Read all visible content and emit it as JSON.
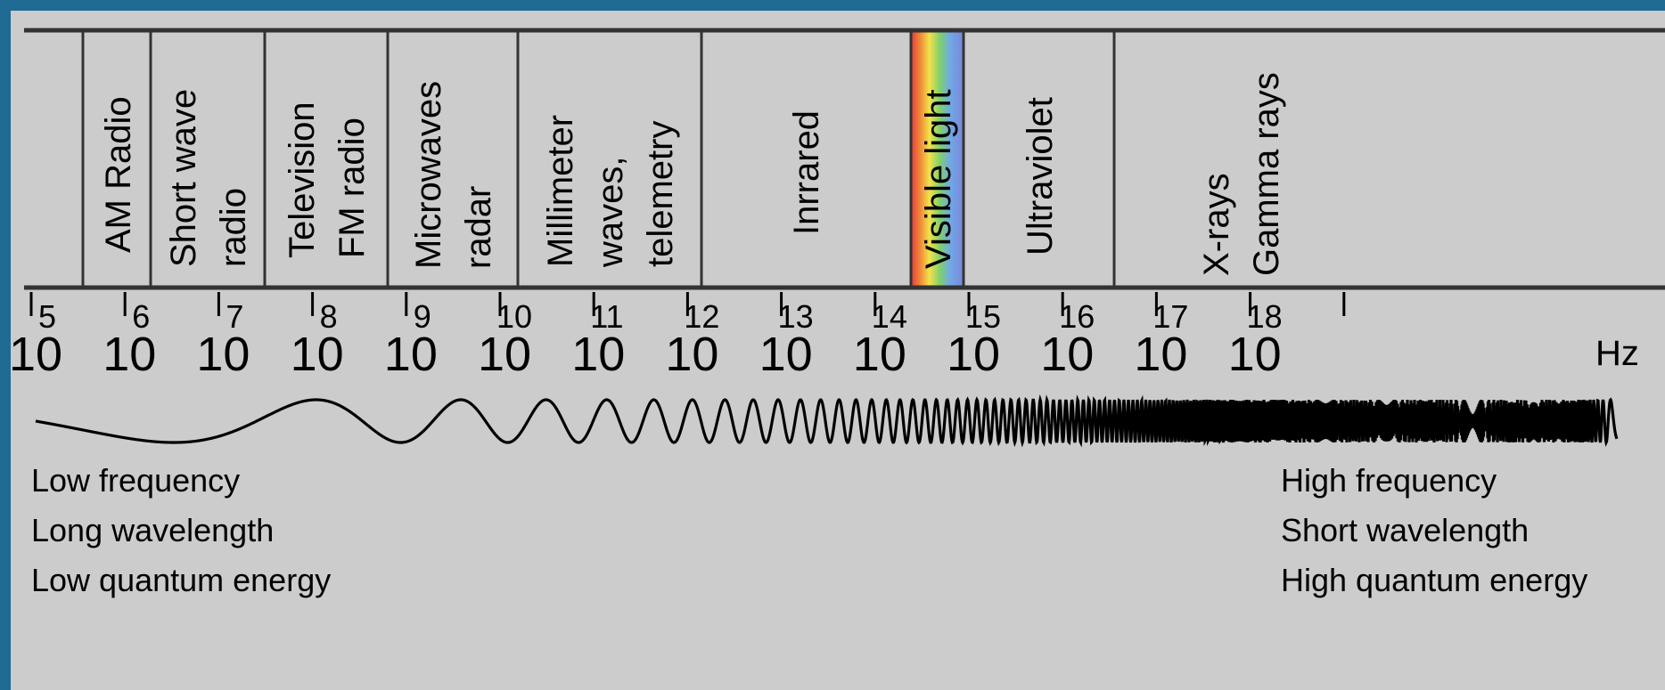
{
  "bands": [
    {
      "name": "am-radio",
      "lines": [
        "AM Radio"
      ]
    },
    {
      "name": "short-wave-radio",
      "lines": [
        "Short wave",
        "radio"
      ]
    },
    {
      "name": "television-fm-radio",
      "lines": [
        "Television",
        "FM radio"
      ]
    },
    {
      "name": "microwaves-radar",
      "lines": [
        "Microwaves",
        "radar"
      ]
    },
    {
      "name": "millimeter-waves-telemetry",
      "lines": [
        "Millimeter",
        "waves,",
        "telemetry"
      ]
    },
    {
      "name": "infrared",
      "lines": [
        "Inrrared"
      ]
    },
    {
      "name": "visible-light",
      "lines": [
        "Visible light"
      ]
    },
    {
      "name": "ultraviolet",
      "lines": [
        "Ultraviolet"
      ]
    },
    {
      "name": "x-rays-gamma-rays",
      "lines": [
        "X-rays",
        "Gamma rays"
      ]
    }
  ],
  "ticks": [
    {
      "base": "10",
      "exp": "5"
    },
    {
      "base": "10",
      "exp": "6"
    },
    {
      "base": "10",
      "exp": "7"
    },
    {
      "base": "10",
      "exp": "8"
    },
    {
      "base": "10",
      "exp": "9"
    },
    {
      "base": "10",
      "exp": "10"
    },
    {
      "base": "10",
      "exp": "11"
    },
    {
      "base": "10",
      "exp": "12"
    },
    {
      "base": "10",
      "exp": "13"
    },
    {
      "base": "10",
      "exp": "14"
    },
    {
      "base": "10",
      "exp": "15"
    },
    {
      "base": "10",
      "exp": "16"
    },
    {
      "base": "10",
      "exp": "17"
    },
    {
      "base": "10",
      "exp": "18"
    }
  ],
  "unit": "Hz",
  "left_notes": [
    "Low frequency",
    "Long wavelength",
    "Low quantum energy"
  ],
  "right_notes": [
    "High frequency",
    "Short wavelength",
    "High quantum energy"
  ],
  "colors": {
    "frame": "#1f6b93",
    "background": "#cccccc",
    "ink": "#000000",
    "lines": "#333333"
  }
}
